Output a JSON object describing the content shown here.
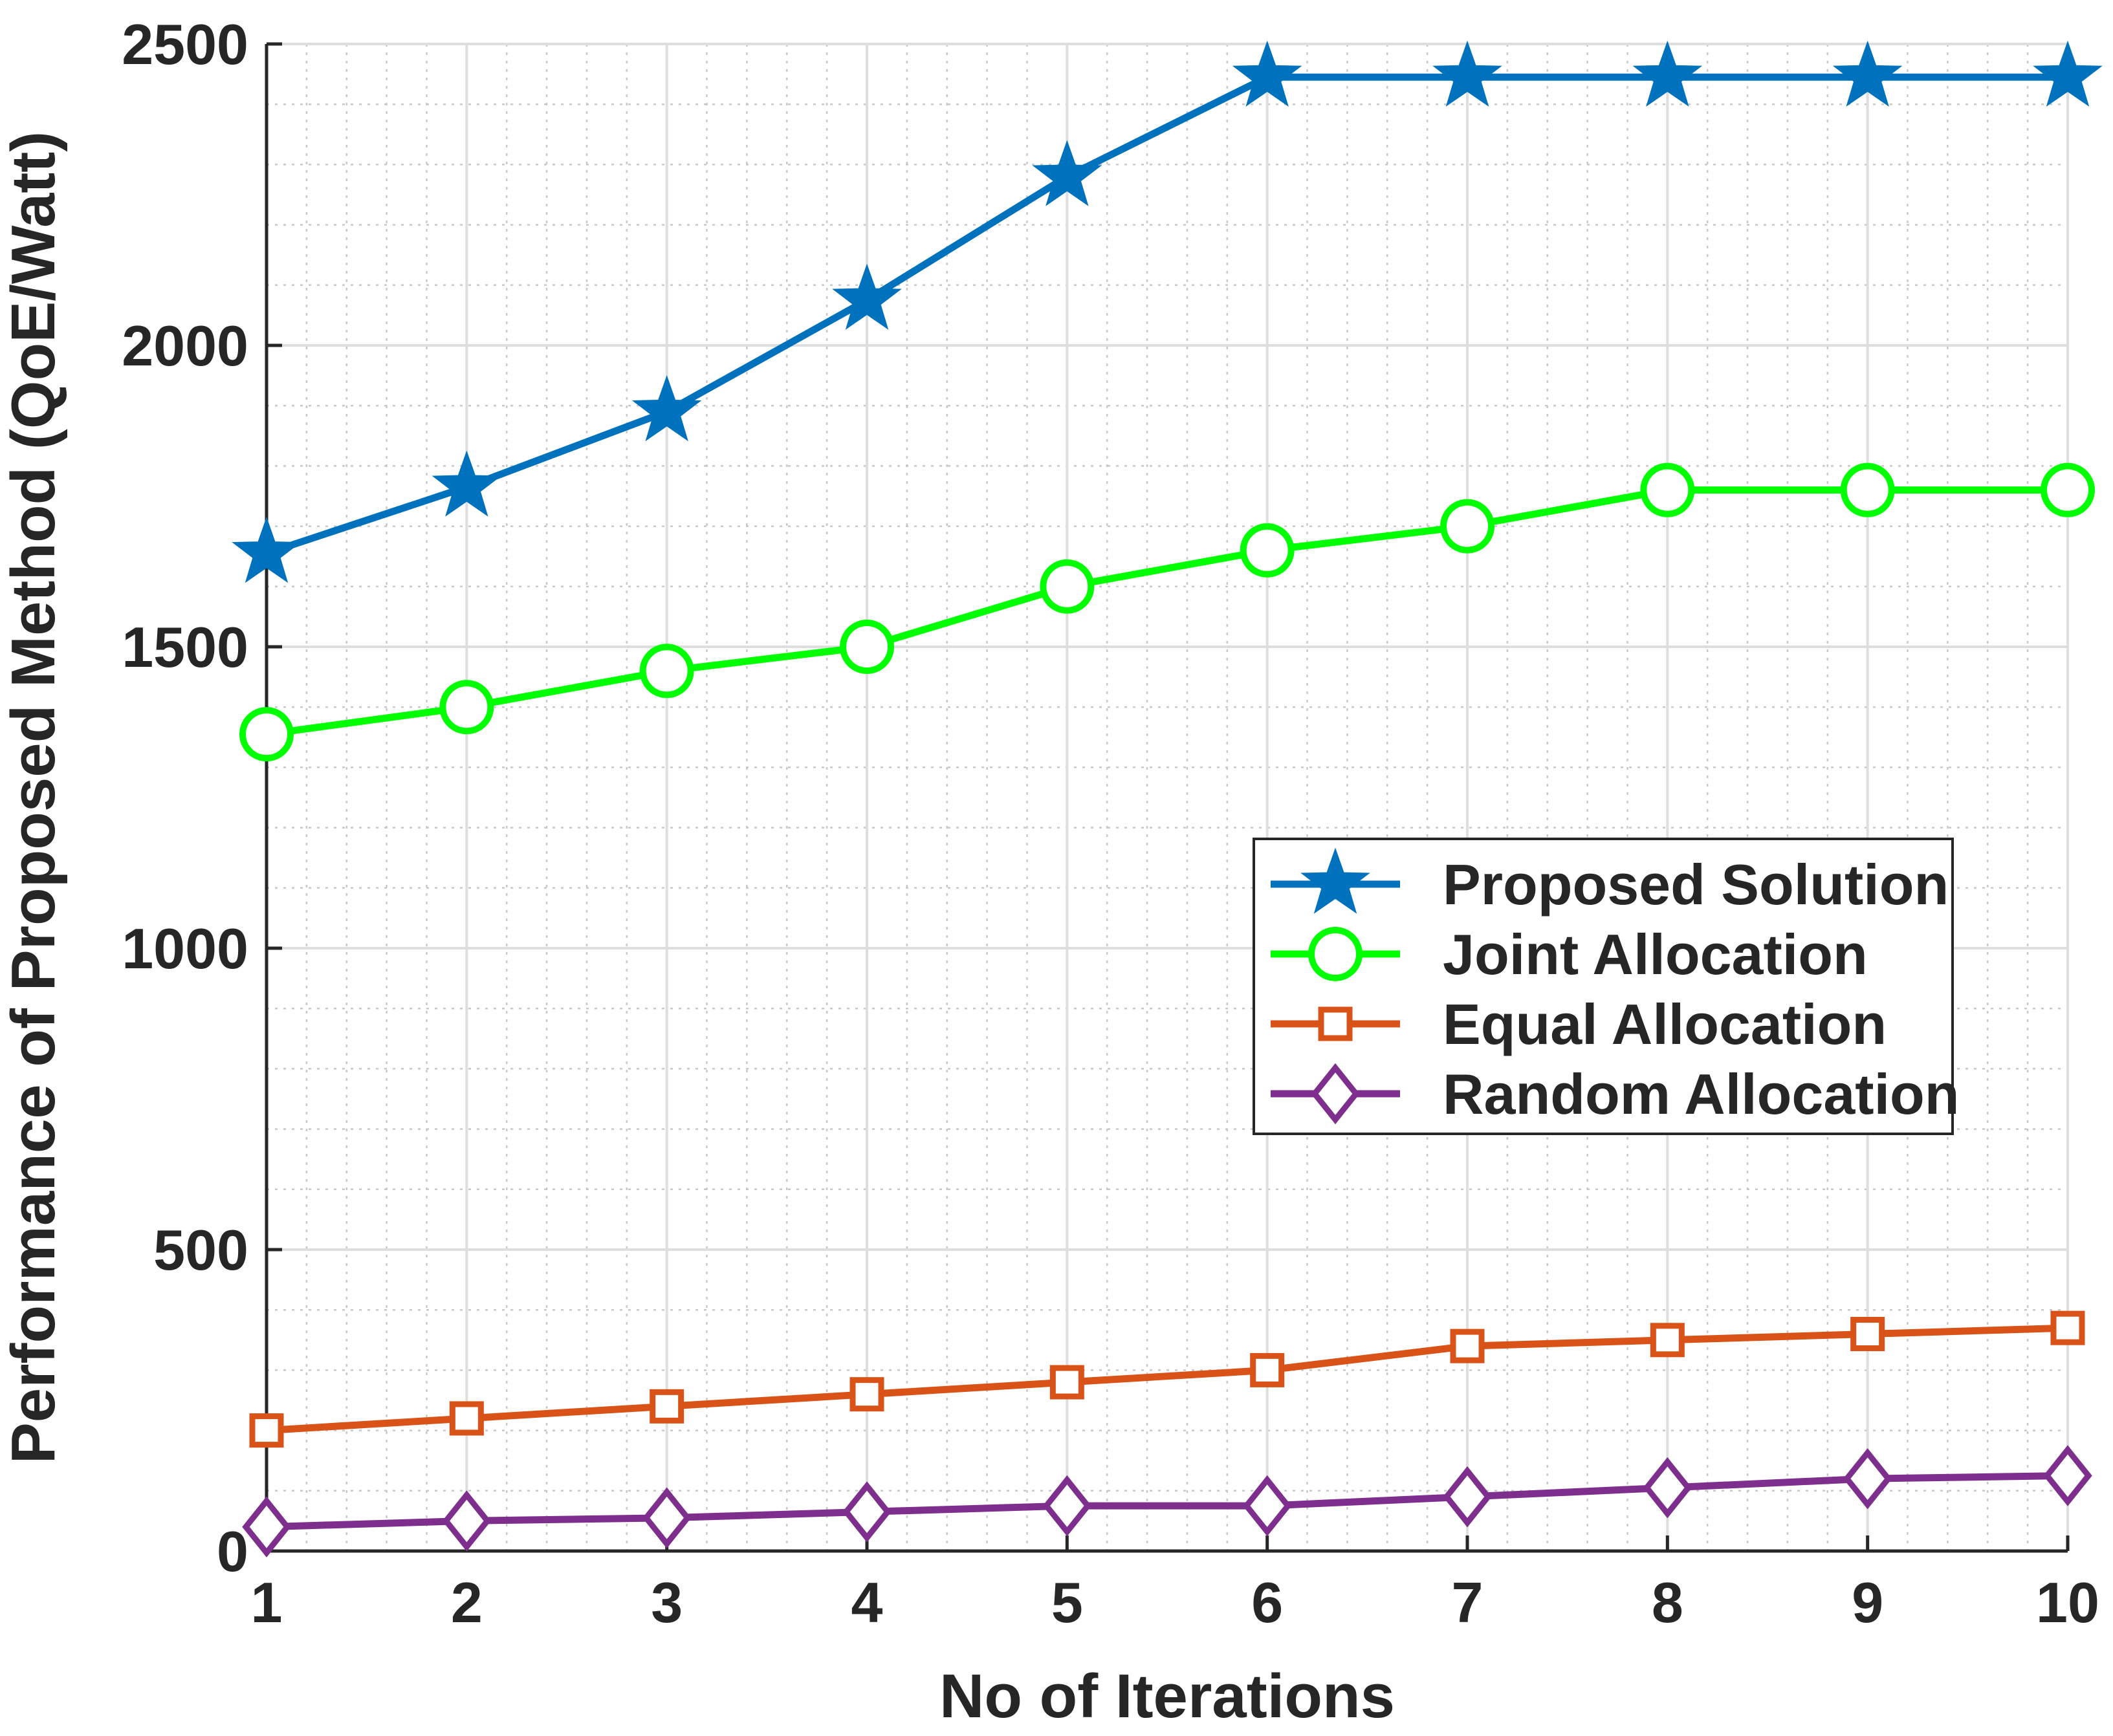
{
  "chart_data": {
    "type": "line",
    "title": "",
    "xlabel": "No of Iterations",
    "ylabel": "Performance of Proposed Method (QoE/Watt)",
    "x": [
      1,
      2,
      3,
      4,
      5,
      6,
      7,
      8,
      9,
      10
    ],
    "xlim": [
      1,
      10
    ],
    "ylim": [
      0,
      2500
    ],
    "xticks": [
      "1",
      "2",
      "3",
      "4",
      "5",
      "6",
      "7",
      "8",
      "9",
      "10"
    ],
    "yticks": [
      "0",
      "500",
      "1000",
      "1500",
      "2000",
      "2500"
    ],
    "grid": true,
    "minor_grid": true,
    "legend_position": "center-right",
    "series": [
      {
        "name": "Proposed Solution",
        "color": "#0072BD",
        "marker": "star",
        "values": [
          1655,
          1765,
          1890,
          2075,
          2280,
          2445,
          2445,
          2445,
          2445,
          2445
        ]
      },
      {
        "name": "Joint Allocation",
        "color": "#00FF00",
        "marker": "circle",
        "values": [
          1355,
          1400,
          1460,
          1500,
          1600,
          1660,
          1700,
          1760,
          1760,
          1760
        ]
      },
      {
        "name": "Equal Allocation",
        "color": "#D95319",
        "marker": "square",
        "values": [
          200,
          220,
          240,
          260,
          280,
          300,
          340,
          350,
          360,
          370
        ]
      },
      {
        "name": "Random Allocation",
        "color": "#7E2F8E",
        "marker": "diamond",
        "values": [
          40,
          50,
          55,
          65,
          75,
          75,
          90,
          105,
          120,
          125
        ]
      }
    ]
  }
}
